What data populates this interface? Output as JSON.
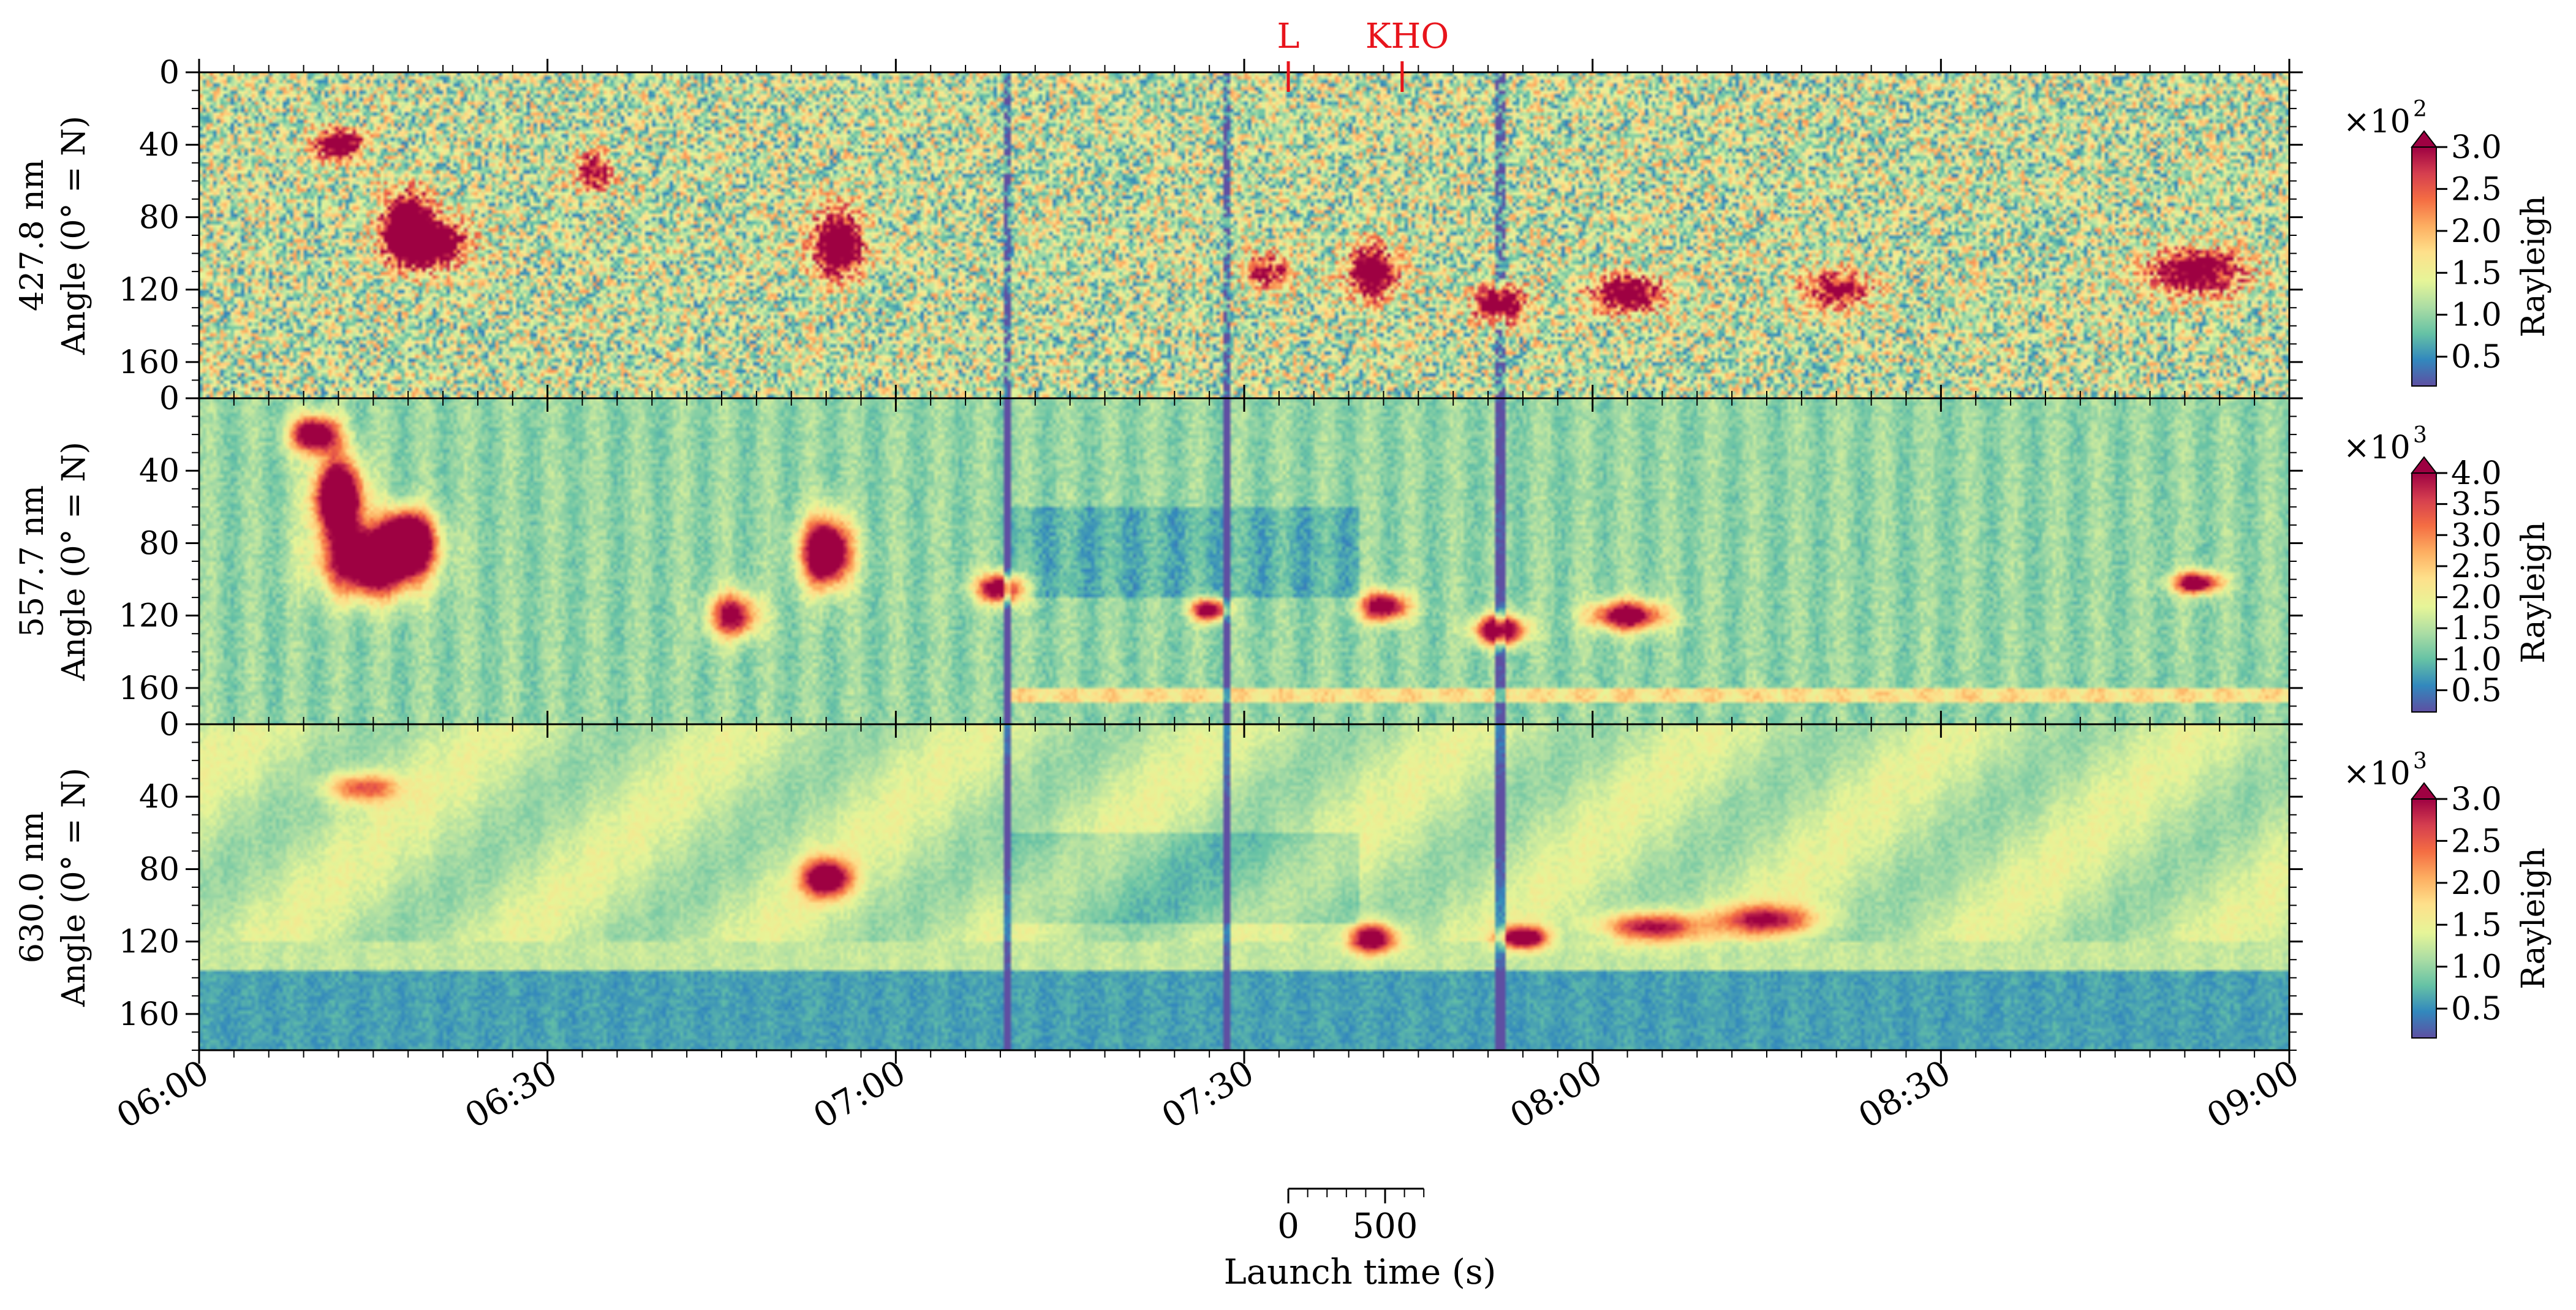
{
  "chart_data": {
    "type": "heatmap",
    "x_axis": {
      "range_minutes": [
        0,
        180
      ],
      "tick_labels": [
        "06:00",
        "06:30",
        "07:00",
        "07:30",
        "08:00",
        "08:30",
        "09:00"
      ],
      "tick_minutes": [
        0,
        30,
        60,
        90,
        120,
        150,
        180
      ],
      "minor_tick_step_minutes": 3
    },
    "y_axis": {
      "range": [
        0,
        180
      ],
      "tick_labels": [
        "0",
        "40",
        "80",
        "120",
        "160"
      ],
      "tick_values": [
        0,
        40,
        80,
        120,
        160
      ],
      "minor_tick_step": 10,
      "inverted": true
    },
    "colormap": [
      "#5e4fa2",
      "#3288bd",
      "#66c2a5",
      "#abdda4",
      "#e6f598",
      "#fee08b",
      "#fdae61",
      "#f46d43",
      "#d53e4f",
      "#9e0142"
    ],
    "panels": [
      {
        "wavelength_label": "427.8 nm",
        "ylabel": "Angle (0° = N)",
        "colorbar": {
          "multiplier": "×10",
          "exponent": "2",
          "label": "Rayleigh",
          "max": 3.0,
          "tick_labels": [
            "0.5",
            "1.0",
            "1.5",
            "2.0",
            "2.5",
            "3.0"
          ],
          "tick_values": [
            0.5,
            1.0,
            1.5,
            2.0,
            2.5,
            3.0
          ],
          "min": 0.15
        }
      },
      {
        "wavelength_label": "557.7 nm",
        "ylabel": "Angle (0° = N)",
        "colorbar": {
          "multiplier": "×10",
          "exponent": "3",
          "label": "Rayleigh",
          "max": 4.0,
          "tick_labels": [
            "0.5",
            "1.0",
            "1.5",
            "2.0",
            "2.5",
            "3.0",
            "3.5",
            "4.0"
          ],
          "tick_values": [
            0.5,
            1.0,
            1.5,
            2.0,
            2.5,
            3.0,
            3.5,
            4.0
          ],
          "min": 0.15
        }
      },
      {
        "wavelength_label": "630.0 nm",
        "ylabel": "Angle (0° = N)",
        "colorbar": {
          "multiplier": "×10",
          "exponent": "3",
          "label": "Rayleigh",
          "max": 3.0,
          "tick_labels": [
            "0.5",
            "1.0",
            "1.5",
            "2.0",
            "2.5",
            "3.0"
          ],
          "tick_values": [
            0.5,
            1.0,
            1.5,
            2.0,
            2.5,
            3.0
          ],
          "min": 0.15
        }
      }
    ],
    "event_markers": [
      {
        "label": "L",
        "time_minutes": 93.8
      },
      {
        "label": "KHO",
        "time_minutes": 103.6
      }
    ],
    "launch_scale": {
      "label": "Launch time (s)",
      "tick_labels": [
        "0",
        "500"
      ],
      "tick_values_s": [
        0,
        500
      ],
      "minor_step_s": 100,
      "max_s": 700
    }
  }
}
